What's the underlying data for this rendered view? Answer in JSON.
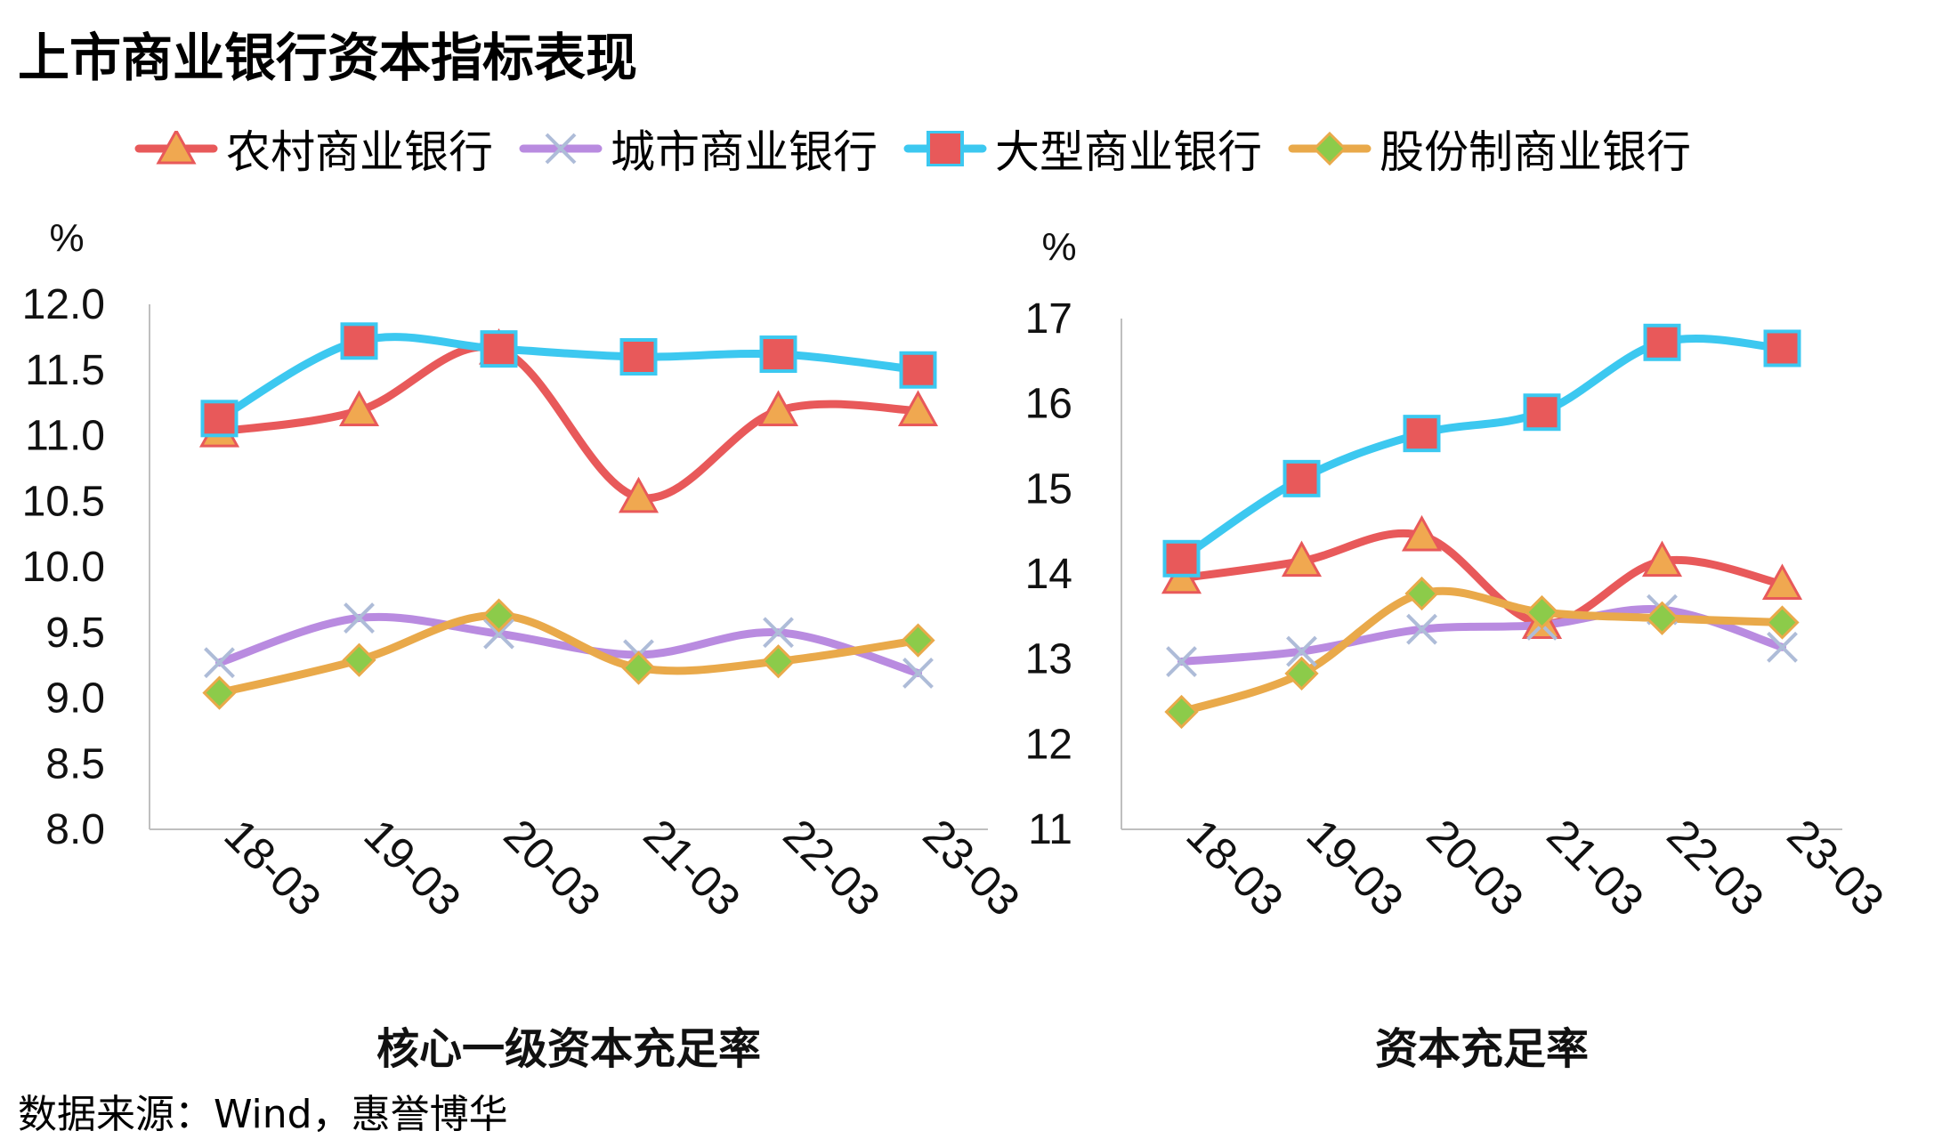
{
  "title": "上市商业银行资本指标表现",
  "source": "数据来源：Wind，惠誉博华",
  "legend": [
    {
      "name": "农村商业银行",
      "color": "#E8595A",
      "marker": "triangle",
      "marker_fill": "#F0A850"
    },
    {
      "name": "城市商业银行",
      "color": "#B98BE0",
      "marker": "cross",
      "marker_fill": "#AEBCD8"
    },
    {
      "name": "大型商业银行",
      "color": "#3CC8F0",
      "marker": "square",
      "marker_fill": "#E8595A"
    },
    {
      "name": "股份制商业银行",
      "color": "#E9A94A",
      "marker": "diamond",
      "marker_fill": "#8CCB4A"
    }
  ],
  "chart_data": [
    {
      "type": "line",
      "title": "核心一级资本充足率",
      "unit": "%",
      "categories": [
        "18-03",
        "19-03",
        "20-03",
        "21-03",
        "22-03",
        "23-03"
      ],
      "ylim": [
        8.0,
        12.0
      ],
      "yticks": [
        "12.0",
        "11.5",
        "11.0",
        "10.5",
        "10.0",
        "9.5",
        "9.0",
        "8.5",
        "8.0"
      ],
      "series": [
        {
          "name": "农村商业银行",
          "values": [
            11.03,
            11.19,
            11.66,
            10.53,
            11.19,
            11.19
          ]
        },
        {
          "name": "城市商业银行",
          "values": [
            9.27,
            9.61,
            9.49,
            9.33,
            9.5,
            9.19
          ]
        },
        {
          "name": "大型商业银行",
          "values": [
            11.13,
            11.72,
            11.66,
            11.6,
            11.62,
            11.5
          ]
        },
        {
          "name": "股份制商业银行",
          "values": [
            9.04,
            9.29,
            9.63,
            9.23,
            9.28,
            9.44
          ]
        }
      ]
    },
    {
      "type": "line",
      "title": "资本充足率",
      "unit": "%",
      "categories": [
        "18-03",
        "19-03",
        "20-03",
        "21-03",
        "22-03",
        "23-03"
      ],
      "ylim": [
        11,
        17
      ],
      "yticks": [
        "17",
        "16",
        "15",
        "14",
        "13",
        "12",
        "11"
      ],
      "series": [
        {
          "name": "农村商业银行",
          "values": [
            13.95,
            14.15,
            14.45,
            13.42,
            14.15,
            13.88
          ]
        },
        {
          "name": "城市商业银行",
          "values": [
            12.97,
            13.09,
            13.35,
            13.4,
            13.58,
            13.14
          ]
        },
        {
          "name": "大型商业银行",
          "values": [
            14.18,
            15.12,
            15.65,
            15.9,
            16.72,
            16.65
          ]
        },
        {
          "name": "股份制商业银行",
          "values": [
            12.38,
            12.83,
            13.77,
            13.55,
            13.48,
            13.43
          ]
        }
      ]
    }
  ]
}
